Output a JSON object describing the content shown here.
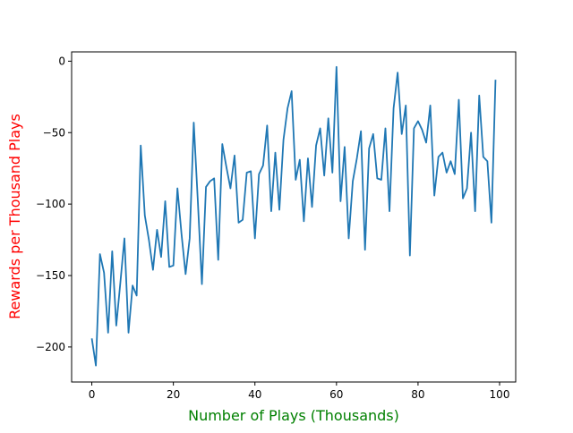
{
  "chart_data": {
    "type": "line",
    "title": "",
    "xlabel": "Number of Plays (Thousands)",
    "ylabel": "Rewards per Thousand Plays",
    "xlabel_color": "#008000",
    "ylabel_color": "#ff0000",
    "line_color": "#1f77b4",
    "xlim": [
      -4.95,
      103.95
    ],
    "ylim": [
      -224.5,
      6.5
    ],
    "xticks": [
      0,
      20,
      40,
      60,
      80,
      100
    ],
    "yticks": [
      -200,
      -150,
      -100,
      -50,
      0
    ],
    "xtick_labels": [
      "0",
      "20",
      "40",
      "60",
      "80",
      "100"
    ],
    "ytick_labels": [
      "−200",
      "−150",
      "−100",
      "−50",
      "0"
    ],
    "grid": false,
    "legend": "none",
    "series": [
      {
        "x": [
          0,
          1,
          2,
          3,
          4,
          5,
          6,
          7,
          8,
          9,
          10,
          11,
          12,
          13,
          14,
          15,
          16,
          17,
          18,
          19,
          20,
          21,
          22,
          23,
          24,
          25,
          26,
          27,
          28,
          29,
          30,
          31,
          32,
          33,
          34,
          35,
          36,
          37,
          38,
          39,
          40,
          41,
          42,
          43,
          44,
          45,
          46,
          47,
          48,
          49,
          50,
          51,
          52,
          53,
          54,
          55,
          56,
          57,
          58,
          59,
          60,
          61,
          62,
          63,
          64,
          65,
          66,
          67,
          68,
          69,
          70,
          71,
          72,
          73,
          74,
          75,
          76,
          77,
          78,
          79,
          80,
          81,
          82,
          83,
          84,
          85,
          86,
          87,
          88,
          89,
          90,
          91,
          92,
          93,
          94,
          95,
          96,
          97,
          98,
          99
        ],
        "y": [
          -194,
          -213,
          -135,
          -148,
          -190,
          -133,
          -185,
          -155,
          -124,
          -190,
          -157,
          -164,
          -59,
          -108,
          -125,
          -146,
          -118,
          -137,
          -98,
          -144,
          -143,
          -89,
          -121,
          -149,
          -124,
          -43,
          -98,
          -156,
          -88,
          -84,
          -82,
          -139,
          -58,
          -74,
          -89,
          -66,
          -113,
          -111,
          -78,
          -77,
          -124,
          -79,
          -73,
          -45,
          -105,
          -64,
          -104,
          -55,
          -33,
          -21,
          -83,
          -69,
          -112,
          -68,
          -102,
          -59,
          -47,
          -80,
          -40,
          -78,
          -4,
          -98,
          -60,
          -124,
          -84,
          -68,
          -49,
          -132,
          -61,
          -51,
          -82,
          -83,
          -47,
          -105,
          -33,
          -8,
          -51,
          -31,
          -136,
          -47,
          -42,
          -48,
          -57,
          -31,
          -94,
          -67,
          -64,
          -78,
          -70,
          -79,
          -27,
          -96,
          -89,
          -50,
          -105,
          -24,
          -67,
          -70,
          -113,
          -13
        ]
      }
    ]
  }
}
